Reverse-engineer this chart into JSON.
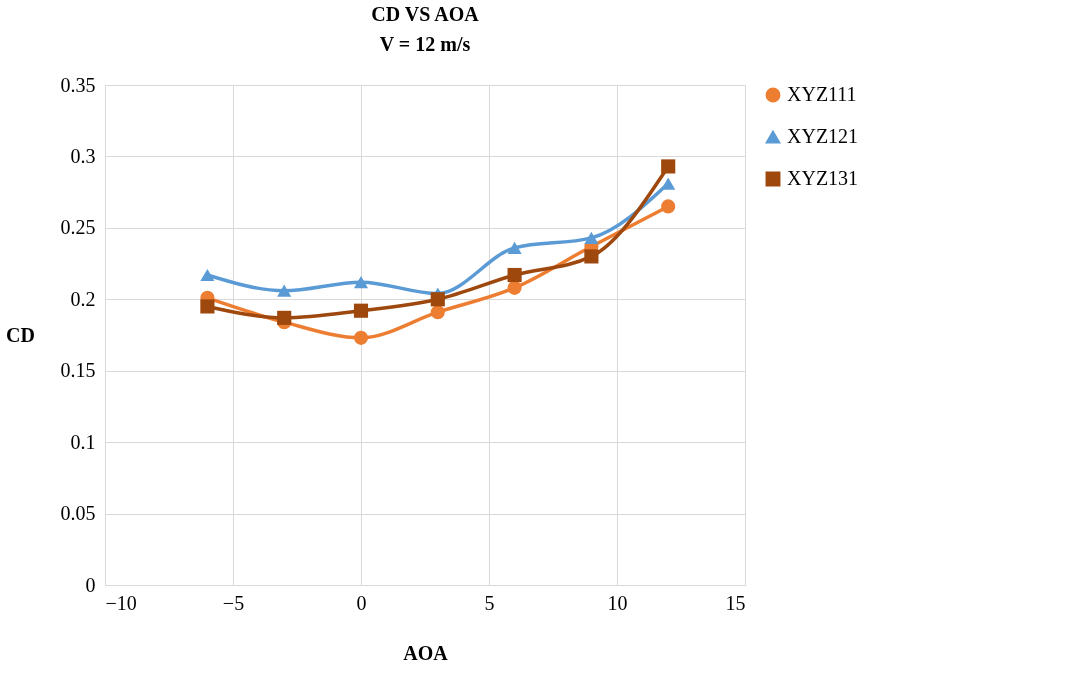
{
  "chart_data": {
    "type": "line",
    "title": "CD VS AOA",
    "subtitle": "V = 12 m/s",
    "xlabel": "AOA",
    "ylabel": "CD",
    "x": [
      -6,
      -3,
      0,
      3,
      6,
      9,
      12
    ],
    "series": [
      {
        "name": "XYZ111",
        "color": "#ed7d31",
        "marker": "circle",
        "values": [
          0.201,
          0.184,
          0.173,
          0.191,
          0.208,
          0.237,
          0.265
        ]
      },
      {
        "name": "XYZ121",
        "color": "#5b9bd5",
        "marker": "triangle",
        "values": [
          0.217,
          0.206,
          0.212,
          0.204,
          0.236,
          0.243,
          0.281
        ]
      },
      {
        "name": "XYZ131",
        "color": "#9e480e",
        "marker": "square",
        "values": [
          0.195,
          0.187,
          0.192,
          0.2,
          0.217,
          0.23,
          0.293
        ]
      }
    ],
    "xlim": [
      -10,
      15
    ],
    "xticks": [
      -10,
      -5,
      0,
      5,
      10,
      15
    ],
    "ylim": [
      0,
      0.35
    ],
    "yticks": [
      0,
      0.05,
      0.1,
      0.15,
      0.2,
      0.25,
      0.3,
      0.35
    ],
    "grid": true,
    "legend": "right",
    "line_style": "solid"
  }
}
